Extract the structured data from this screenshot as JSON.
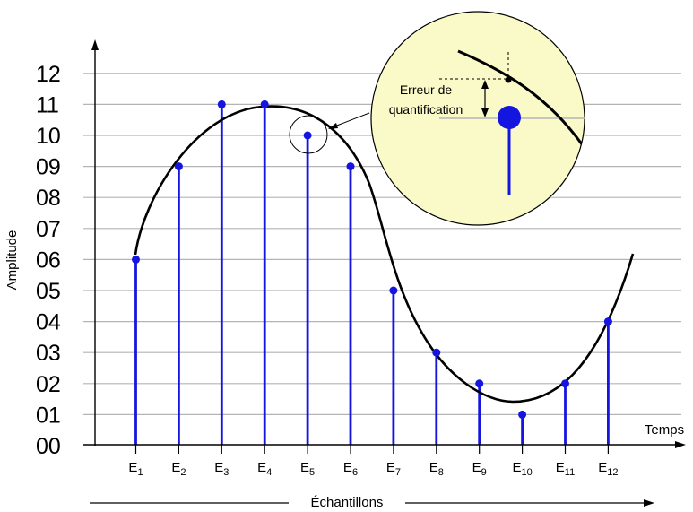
{
  "diagram": {
    "y_axis_label": "Amplitude",
    "x_axis_label": "Temps",
    "bottom_caption": "Échantillons",
    "zoom_annotation": {
      "line1": "Erreur de",
      "line2": "quantification"
    },
    "colors": {
      "sample": "#1515e0",
      "curve": "#000000",
      "grid": "#b4b4b4",
      "zoom_fill": "#fafac8"
    },
    "icons": {
      "axis_arrow": "arrowhead-icon",
      "zoom_lens": "magnifier-circle-icon"
    }
  },
  "chart_data": {
    "type": "stem",
    "y_ticks": [
      "00",
      "01",
      "02",
      "03",
      "04",
      "05",
      "06",
      "07",
      "08",
      "09",
      "10",
      "11",
      "12"
    ],
    "ylim": [
      0,
      12
    ],
    "samples": [
      {
        "base": "E",
        "sub": "1",
        "value": 6
      },
      {
        "base": "E",
        "sub": "2",
        "value": 9
      },
      {
        "base": "E",
        "sub": "3",
        "value": 11
      },
      {
        "base": "E",
        "sub": "4",
        "value": 11
      },
      {
        "base": "E",
        "sub": "5",
        "value": 10
      },
      {
        "base": "E",
        "sub": "6",
        "value": 9
      },
      {
        "base": "E",
        "sub": "7",
        "value": 5
      },
      {
        "base": "E",
        "sub": "8",
        "value": 3
      },
      {
        "base": "E",
        "sub": "9",
        "value": 2
      },
      {
        "base": "E",
        "sub": "10",
        "value": 1
      },
      {
        "base": "E",
        "sub": "11",
        "value": 2
      },
      {
        "base": "E",
        "sub": "12",
        "value": 4
      }
    ],
    "grid": true
  }
}
